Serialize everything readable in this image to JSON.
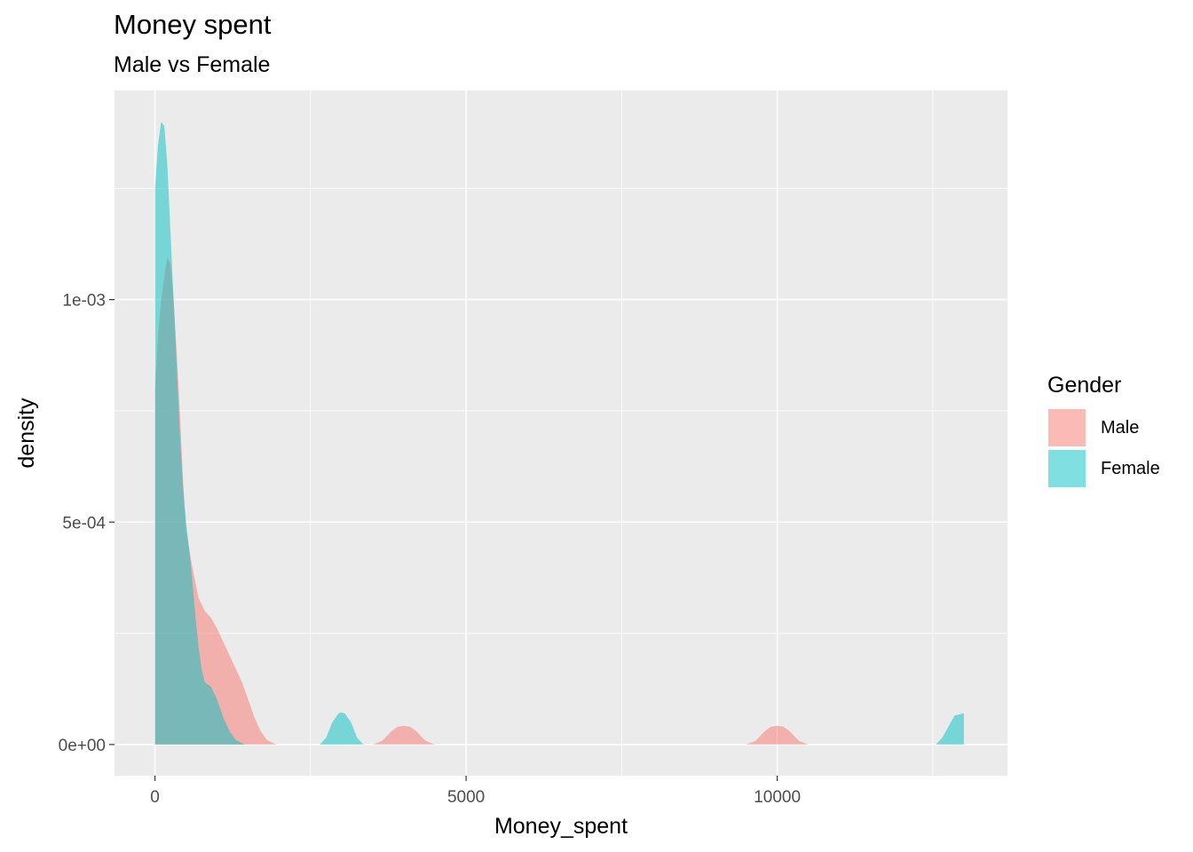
{
  "chart_data": {
    "type": "area",
    "title": "Money spent",
    "subtitle": "Male vs Female",
    "xlabel": "Money_spent",
    "ylabel": "density",
    "xlim": [
      -650,
      13700
    ],
    "ylim": [
      -7e-05,
      0.00147
    ],
    "x_ticks": [
      0,
      5000,
      10000
    ],
    "x_tick_labels": [
      "0",
      "5000",
      "10000"
    ],
    "x_minor_ticks": [
      2500,
      7500,
      12500
    ],
    "y_ticks": [
      0,
      0.0005,
      0.001
    ],
    "y_tick_labels": [
      "0e+00",
      "5e-04",
      "1e-03"
    ],
    "y_minor_ticks": [
      0.00025,
      0.00075,
      0.00125
    ],
    "grid": true,
    "legend_title": "Gender",
    "legend_position": "right",
    "series": [
      {
        "name": "Male",
        "color": "#F8766D",
        "points": [
          [
            0,
            0
          ],
          [
            0,
            0.0008
          ],
          [
            50,
            0.00092
          ],
          [
            100,
            0.001
          ],
          [
            150,
            0.00105
          ],
          [
            200,
            0.001096
          ],
          [
            250,
            0.00108
          ],
          [
            300,
            0.001
          ],
          [
            350,
            0.00088
          ],
          [
            400,
            0.00075
          ],
          [
            450,
            0.0006
          ],
          [
            500,
            0.00048
          ],
          [
            600,
            0.0004
          ],
          [
            700,
            0.00033
          ],
          [
            800,
            0.0003
          ],
          [
            900,
            0.000285
          ],
          [
            1000,
            0.00026
          ],
          [
            1100,
            0.00023
          ],
          [
            1200,
            0.0002
          ],
          [
            1300,
            0.00017
          ],
          [
            1400,
            0.00014
          ],
          [
            1500,
            0.0001
          ],
          [
            1600,
            6e-05
          ],
          [
            1700,
            3e-05
          ],
          [
            1800,
            1e-05
          ],
          [
            1950,
            0
          ],
          [
            3500,
            0
          ],
          [
            3650,
            8e-06
          ],
          [
            3800,
            3e-05
          ],
          [
            3900,
            4e-05
          ],
          [
            4000,
            4.2e-05
          ],
          [
            4100,
            4e-05
          ],
          [
            4200,
            3e-05
          ],
          [
            4350,
            8e-06
          ],
          [
            4500,
            0
          ],
          [
            9500,
            0
          ],
          [
            9650,
            8e-06
          ],
          [
            9800,
            3e-05
          ],
          [
            9900,
            4e-05
          ],
          [
            10000,
            4.2e-05
          ],
          [
            10100,
            4e-05
          ],
          [
            10200,
            3e-05
          ],
          [
            10350,
            8e-06
          ],
          [
            10500,
            0
          ]
        ]
      },
      {
        "name": "Female",
        "color": "#00BFC4",
        "points": [
          [
            0,
            0
          ],
          [
            0,
            0.00125
          ],
          [
            50,
            0.00135
          ],
          [
            100,
            0.0014
          ],
          [
            150,
            0.00139
          ],
          [
            200,
            0.0013
          ],
          [
            250,
            0.00115
          ],
          [
            300,
            0.001
          ],
          [
            350,
            0.00085
          ],
          [
            400,
            0.0007
          ],
          [
            450,
            0.00058
          ],
          [
            500,
            0.0005
          ],
          [
            550,
            0.00044
          ],
          [
            600,
            0.00037
          ],
          [
            650,
            0.00029
          ],
          [
            700,
            0.00022
          ],
          [
            750,
            0.00017
          ],
          [
            800,
            0.00014
          ],
          [
            900,
            0.00013
          ],
          [
            1000,
            0.0001
          ],
          [
            1100,
            6e-05
          ],
          [
            1200,
            3e-05
          ],
          [
            1300,
            1e-05
          ],
          [
            1450,
            0
          ],
          [
            2650,
            0
          ],
          [
            2750,
            1.5e-05
          ],
          [
            2850,
            5e-05
          ],
          [
            2950,
            7e-05
          ],
          [
            3000,
            7.2e-05
          ],
          [
            3050,
            7e-05
          ],
          [
            3150,
            5e-05
          ],
          [
            3250,
            1.5e-05
          ],
          [
            3350,
            0
          ],
          [
            12550,
            0
          ],
          [
            12650,
            1.5e-05
          ],
          [
            12750,
            4e-05
          ],
          [
            12850,
            6.5e-05
          ],
          [
            13000,
            7e-05
          ],
          [
            13000,
            0
          ]
        ]
      }
    ]
  }
}
